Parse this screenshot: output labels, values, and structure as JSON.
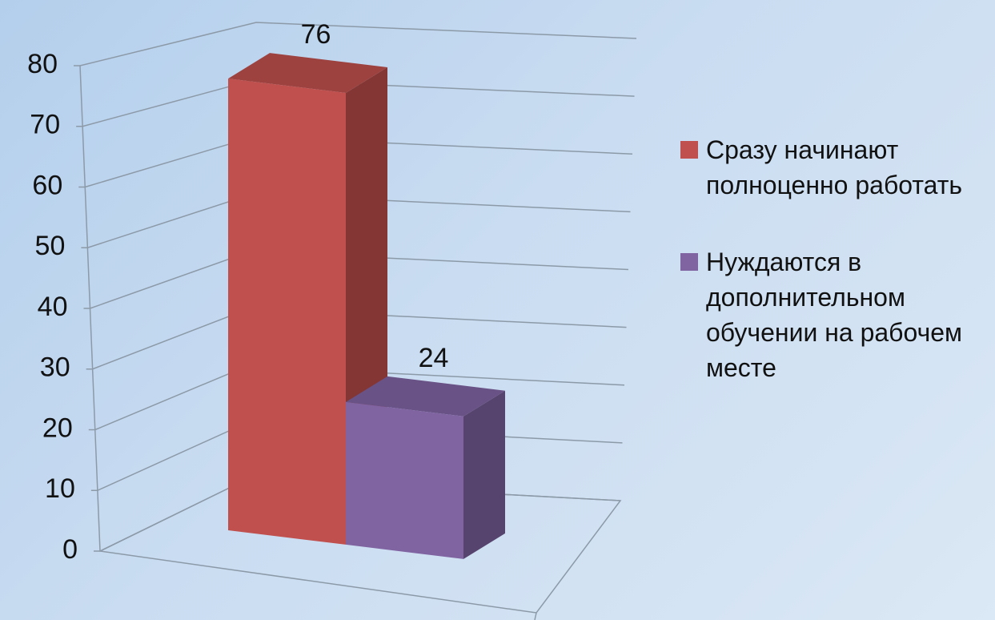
{
  "chart_data": {
    "type": "bar3d",
    "series": [
      {
        "name": "Сразу начинают полноценно работать",
        "color": "#c0504d",
        "values": [
          76
        ]
      },
      {
        "name": "Нуждаются в дополнительном обучении на рабочем месте",
        "color": "#8064a2",
        "values": [
          24
        ]
      }
    ],
    "ylim": [
      0,
      80
    ],
    "yticks": [
      0,
      10,
      20,
      30,
      40,
      50,
      60,
      70,
      80
    ],
    "grid": true,
    "legend": "right"
  }
}
